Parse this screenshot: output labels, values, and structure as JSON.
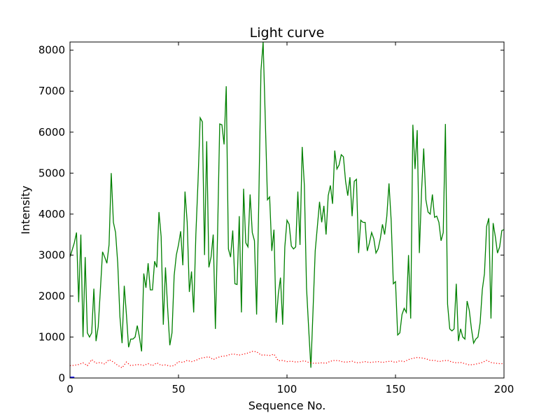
{
  "chart_data": {
    "type": "line",
    "title": "Light curve",
    "xlabel": "Sequence No.",
    "ylabel": "Intensity",
    "xlim": [
      0,
      200
    ],
    "ylim": [
      0,
      8200
    ],
    "x_ticks": [
      0,
      50,
      100,
      150,
      200
    ],
    "y_ticks": [
      0,
      1000,
      2000,
      3000,
      4000,
      5000,
      6000,
      7000,
      8000
    ],
    "grid": false,
    "legend": "none",
    "series": [
      {
        "color": "#008000",
        "style": "solid",
        "x": [
          0,
          2,
          3,
          4,
          5,
          6,
          7,
          8,
          9,
          10,
          11,
          12,
          13,
          14,
          15,
          16,
          17,
          18,
          19,
          20,
          21,
          22,
          23,
          24,
          25,
          26,
          27,
          28,
          29,
          30,
          31,
          32,
          33,
          34,
          35,
          36,
          37,
          38,
          39,
          40,
          41,
          42,
          43,
          44,
          45,
          46,
          47,
          48,
          49,
          50,
          51,
          52,
          53,
          54,
          55,
          56,
          57,
          58,
          59,
          60,
          61,
          62,
          63,
          64,
          65,
          66,
          67,
          68,
          69,
          70,
          71,
          72,
          73,
          74,
          75,
          76,
          77,
          78,
          79,
          80,
          81,
          82,
          83,
          84,
          85,
          86,
          87,
          88,
          89,
          90,
          91,
          92,
          93,
          94,
          95,
          96,
          97,
          98,
          99,
          100,
          101,
          102,
          103,
          104,
          105,
          106,
          107,
          108,
          109,
          110,
          111,
          112,
          113,
          114,
          115,
          116,
          117,
          118,
          119,
          120,
          121,
          122,
          123,
          124,
          125,
          126,
          127,
          128,
          129,
          130,
          131,
          132,
          133,
          134,
          135,
          136,
          137,
          138,
          139,
          140,
          141,
          142,
          143,
          144,
          145,
          146,
          147,
          148,
          149,
          150,
          151,
          152,
          153,
          154,
          155,
          156,
          157,
          158,
          159,
          160,
          161,
          162,
          163,
          164,
          165,
          166,
          167,
          168,
          169,
          170,
          171,
          172,
          173,
          174,
          175,
          176,
          177,
          178,
          179,
          180,
          181,
          182,
          183,
          184,
          185,
          186,
          187,
          188,
          189,
          190,
          191,
          192,
          193,
          194,
          195,
          196,
          197,
          198,
          199,
          200
        ],
        "y": [
          2950,
          3300,
          3550,
          1850,
          3500,
          1000,
          2950,
          1100,
          1000,
          1100,
          2180,
          900,
          1250,
          2150,
          3080,
          2950,
          2800,
          3250,
          5000,
          3800,
          3550,
          2800,
          1500,
          850,
          2250,
          1550,
          750,
          950,
          950,
          1000,
          1280,
          1000,
          650,
          2550,
          2200,
          2800,
          2150,
          2150,
          2850,
          2700,
          4050,
          3450,
          1300,
          2700,
          1700,
          800,
          1100,
          2500,
          3000,
          3250,
          3580,
          2750,
          4550,
          3800,
          2100,
          2600,
          1600,
          3500,
          4800,
          6350,
          6250,
          3000,
          5780,
          2700,
          2950,
          3500,
          1200,
          3500,
          6200,
          6180,
          5700,
          7120,
          3150,
          2950,
          3600,
          2300,
          2280,
          3950,
          1600,
          4620,
          3300,
          3200,
          4480,
          3550,
          3350,
          1550,
          4300,
          7500,
          8200,
          6300,
          4350,
          4420,
          3100,
          3620,
          1350,
          2050,
          2450,
          1300,
          3200,
          3850,
          3750,
          3220,
          3150,
          3200,
          4550,
          3250,
          5640,
          4700,
          2200,
          1200,
          250,
          1650,
          3100,
          3700,
          4300,
          3800,
          4200,
          3500,
          4450,
          4700,
          4250,
          5550,
          5100,
          5200,
          5450,
          5400,
          4800,
          4450,
          4900,
          3950,
          4800,
          4850,
          3050,
          3850,
          3800,
          3800,
          3100,
          3300,
          3550,
          3400,
          3050,
          3150,
          3400,
          3750,
          3500,
          3950,
          4750,
          3850,
          2300,
          2350,
          1050,
          1100,
          1550,
          1700,
          1600,
          3000,
          1450,
          6180,
          5100,
          6050,
          3050,
          4550,
          5600,
          4350,
          4050,
          4000,
          4480,
          3920,
          3950,
          3800,
          3350,
          3550,
          6200,
          1800,
          1200,
          1150,
          1200,
          2300,
          900,
          1200,
          1000,
          950,
          1880,
          1650,
          1200,
          850,
          950,
          1000,
          1350,
          2150,
          2550,
          3700,
          3900,
          1450,
          3780,
          3450,
          3050,
          3200,
          3600,
          3620
        ]
      },
      {
        "color": "#ff0000",
        "style": "dotted",
        "x": [
          0,
          2,
          4,
          6,
          8,
          10,
          12,
          14,
          16,
          18,
          20,
          22,
          24,
          26,
          28,
          30,
          32,
          34,
          36,
          38,
          40,
          42,
          44,
          46,
          48,
          50,
          52,
          54,
          56,
          58,
          60,
          62,
          64,
          66,
          68,
          70,
          72,
          74,
          76,
          78,
          80,
          82,
          84,
          86,
          88,
          90,
          92,
          94,
          96,
          98,
          100,
          102,
          104,
          106,
          108,
          110,
          112,
          114,
          116,
          118,
          120,
          122,
          124,
          126,
          128,
          130,
          132,
          134,
          136,
          138,
          140,
          142,
          144,
          146,
          148,
          150,
          152,
          154,
          156,
          158,
          160,
          162,
          164,
          166,
          168,
          170,
          172,
          174,
          176,
          178,
          180,
          182,
          184,
          186,
          188,
          190,
          192,
          194,
          196,
          198,
          200
        ],
        "y": [
          300,
          310,
          330,
          370,
          300,
          450,
          360,
          380,
          340,
          450,
          390,
          310,
          250,
          390,
          300,
          320,
          330,
          310,
          350,
          300,
          370,
          310,
          320,
          290,
          300,
          400,
          380,
          430,
          400,
          430,
          480,
          500,
          520,
          450,
          500,
          530,
          540,
          580,
          580,
          560,
          580,
          610,
          650,
          640,
          560,
          560,
          550,
          580,
          420,
          430,
          400,
          410,
          390,
          400,
          420,
          380,
          360,
          360,
          370,
          360,
          410,
          430,
          420,
          390,
          390,
          410,
          370,
          380,
          400,
          380,
          390,
          400,
          380,
          400,
          410,
          380,
          420,
          400,
          450,
          480,
          500,
          490,
          470,
          430,
          430,
          400,
          420,
          430,
          390,
          370,
          380,
          350,
          320,
          330,
          350,
          380,
          430,
          380,
          360,
          350,
          350
        ]
      },
      {
        "color": "#0000ff",
        "style": "solid",
        "x": [
          0,
          1,
          2
        ],
        "y": [
          20,
          20,
          20
        ]
      }
    ]
  }
}
